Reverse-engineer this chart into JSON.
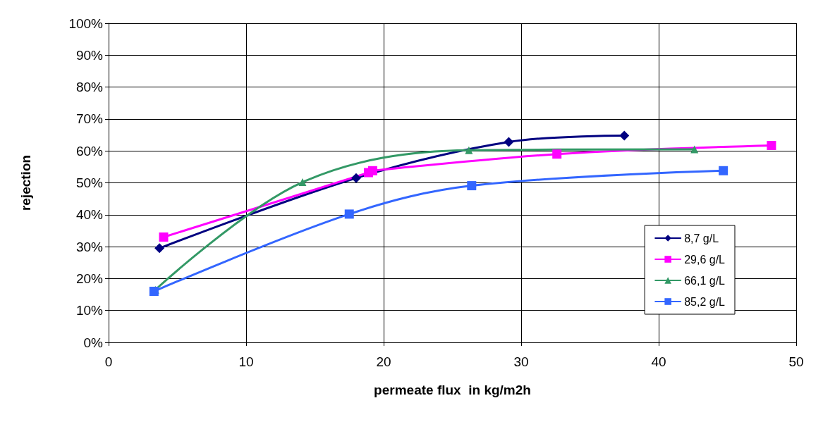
{
  "chart_data": {
    "type": "line",
    "xlabel": "permeate flux  in kg/m2h",
    "ylabel": "rejection",
    "xlim": [
      0,
      50
    ],
    "xticks": [
      0,
      10,
      20,
      30,
      40,
      50
    ],
    "ylim": [
      0,
      100
    ],
    "yticks": [
      {
        "value": 0,
        "label": "0%"
      },
      {
        "value": 10,
        "label": "10%"
      },
      {
        "value": 20,
        "label": "20%"
      },
      {
        "value": 30,
        "label": "30%"
      },
      {
        "value": 40,
        "label": "40%"
      },
      {
        "value": 50,
        "label": "50%"
      },
      {
        "value": 60,
        "label": "60%"
      },
      {
        "value": 70,
        "label": "70%"
      },
      {
        "value": 80,
        "label": "80%"
      },
      {
        "value": 90,
        "label": "90%"
      },
      {
        "value": 100,
        "label": "100%"
      }
    ],
    "grid": true,
    "legend": "right",
    "line_style": "solid",
    "series": [
      {
        "name": "8,7 g/L",
        "color": "#000080",
        "marker": "diamond",
        "x": [
          3.7,
          18,
          29.1,
          37.5
        ],
        "values": [
          29.5,
          51.5,
          62.8,
          64.8
        ]
      },
      {
        "name": "29,6 g/L",
        "color": "#ff00ff",
        "marker": "square",
        "x": [
          4,
          18.9,
          19.2,
          32.6,
          48.2
        ],
        "values": [
          33,
          53.2,
          53.8,
          59,
          61.7
        ]
      },
      {
        "name": "66,1 g/L",
        "color": "#339966",
        "marker": "triangle",
        "x": [
          3.4,
          14.1,
          26.2,
          42.6
        ],
        "values": [
          16.5,
          50.2,
          60.2,
          60.5
        ]
      },
      {
        "name": "85,2 g/L",
        "color": "#3366ff",
        "marker": "square",
        "x": [
          3.3,
          17.5,
          26.4,
          44.7
        ],
        "values": [
          16,
          40.2,
          49.1,
          53.8
        ]
      }
    ]
  }
}
